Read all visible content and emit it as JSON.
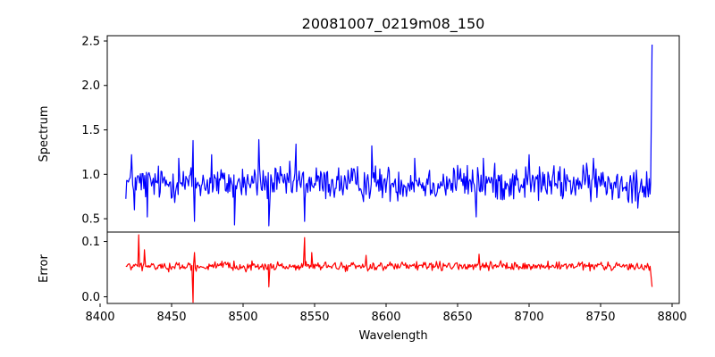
{
  "chart_data": [
    {
      "type": "line",
      "title": "20081007_0219m08_150",
      "xlabel": "",
      "ylabel": "Spectrum",
      "xlim": [
        8405,
        8805
      ],
      "ylim": [
        0.35,
        2.56
      ],
      "yticks": [
        0.5,
        1.0,
        1.5,
        2.0,
        2.5
      ],
      "ytick_labels": [
        "0.5",
        "1.0",
        "1.5",
        "2.0",
        "2.5"
      ],
      "series": [
        {
          "name": "spectrum",
          "color": "#0000ff",
          "x_start": 8418,
          "x_end": 8786,
          "baseline": 0.9,
          "noise_amplitude": 0.18,
          "end_spike_value": 2.46,
          "notable_points": [
            {
              "x": 8422,
              "y": 1.22
            },
            {
              "x": 8424,
              "y": 0.6
            },
            {
              "x": 8433,
              "y": 0.52
            },
            {
              "x": 8455,
              "y": 1.18
            },
            {
              "x": 8465,
              "y": 1.38
            },
            {
              "x": 8466,
              "y": 0.47
            },
            {
              "x": 8478,
              "y": 1.22
            },
            {
              "x": 8494,
              "y": 0.43
            },
            {
              "x": 8511,
              "y": 1.39
            },
            {
              "x": 8518,
              "y": 0.42
            },
            {
              "x": 8537,
              "y": 1.34
            },
            {
              "x": 8543,
              "y": 0.47
            },
            {
              "x": 8590,
              "y": 1.32
            },
            {
              "x": 8620,
              "y": 1.18
            },
            {
              "x": 8650,
              "y": 1.1
            },
            {
              "x": 8663,
              "y": 0.52
            },
            {
              "x": 8668,
              "y": 1.18
            },
            {
              "x": 8700,
              "y": 1.22
            },
            {
              "x": 8745,
              "y": 1.18
            },
            {
              "x": 8776,
              "y": 0.62
            },
            {
              "x": 8785,
              "y": 0.9
            },
            {
              "x": 8786,
              "y": 2.46
            }
          ]
        }
      ],
      "grid": false
    },
    {
      "type": "line",
      "title": "",
      "xlabel": "Wavelength",
      "ylabel": "Error",
      "xlim": [
        8405,
        8805
      ],
      "ylim": [
        -0.012,
        0.117
      ],
      "yticks": [
        0.0,
        0.1
      ],
      "ytick_labels": [
        "0.0",
        "0.1"
      ],
      "xticks": [
        8400,
        8450,
        8500,
        8550,
        8600,
        8650,
        8700,
        8750,
        8800
      ],
      "xtick_labels": [
        "8400",
        "8450",
        "8500",
        "8550",
        "8600",
        "8650",
        "8700",
        "8750",
        "8800"
      ],
      "series": [
        {
          "name": "error",
          "color": "#ff0000",
          "x_start": 8418,
          "x_end": 8786,
          "baseline": 0.055,
          "noise_amplitude": 0.007,
          "notable_points": [
            {
              "x": 8427,
              "y": 0.112
            },
            {
              "x": 8431,
              "y": 0.085
            },
            {
              "x": 8465,
              "y": -0.01
            },
            {
              "x": 8466,
              "y": 0.08
            },
            {
              "x": 8518,
              "y": 0.018
            },
            {
              "x": 8543,
              "y": 0.107
            },
            {
              "x": 8548,
              "y": 0.08
            },
            {
              "x": 8586,
              "y": 0.075
            },
            {
              "x": 8665,
              "y": 0.077
            },
            {
              "x": 8785,
              "y": 0.045
            },
            {
              "x": 8786,
              "y": 0.018
            }
          ]
        }
      ],
      "grid": false
    }
  ]
}
